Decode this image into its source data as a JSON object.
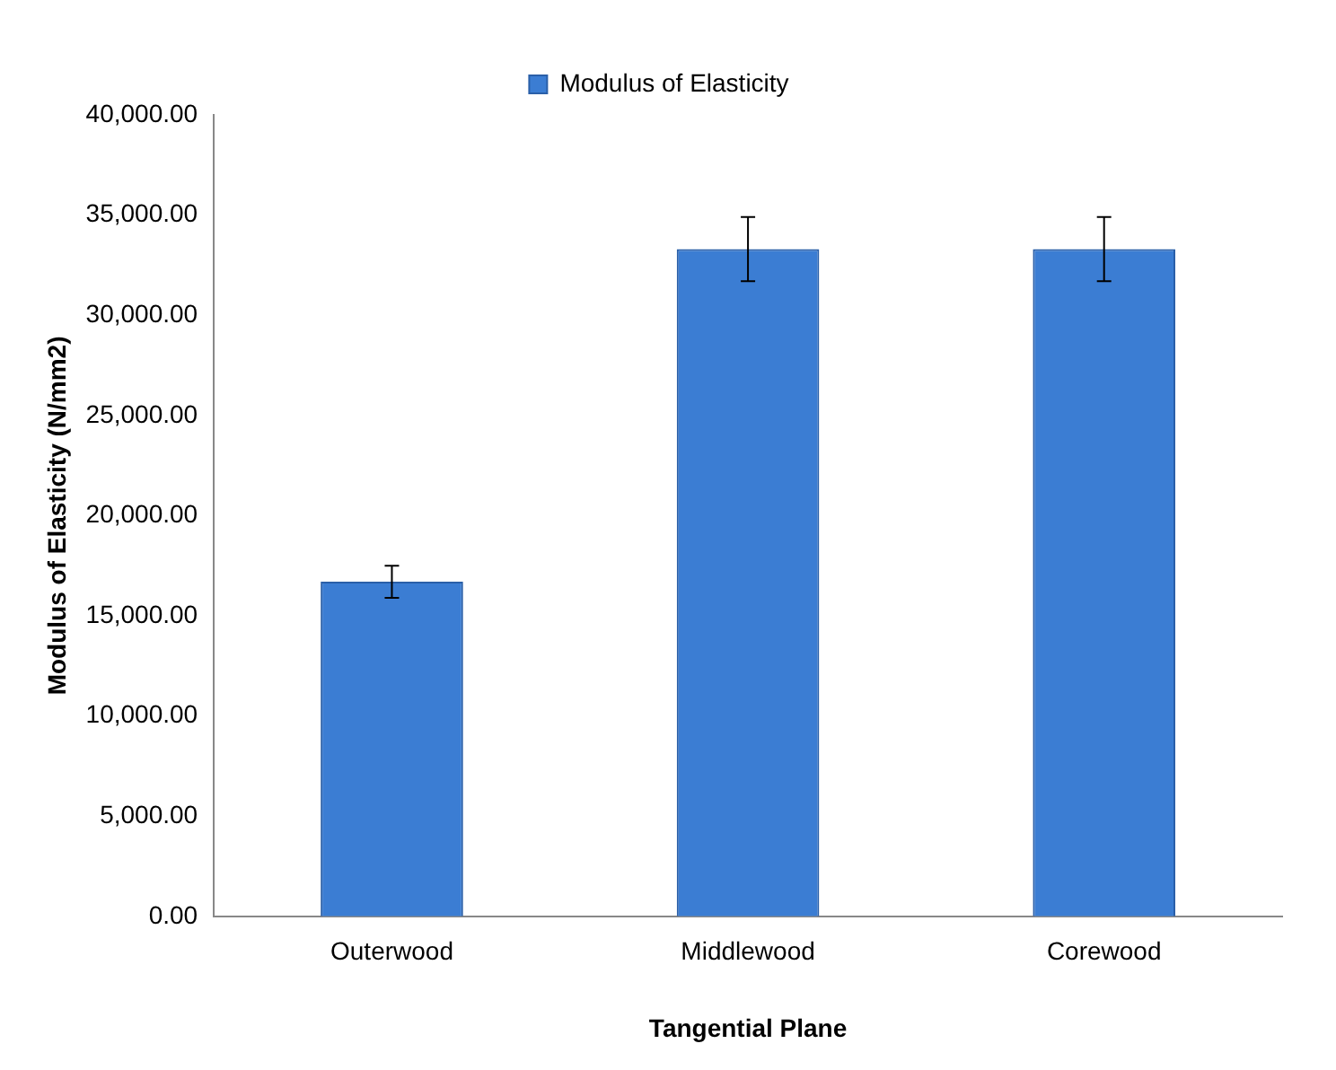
{
  "chart_data": {
    "type": "bar",
    "xlabel": "Tangential Plane",
    "ylabel": "Modulus of Elasticity (N/mm2)",
    "categories": [
      "Outerwood",
      "Middlewood",
      "Corewood"
    ],
    "series": [
      {
        "name": "Modulus of Elasticity",
        "color": "#3b7dd3",
        "values": [
          16700,
          33300,
          33300
        ],
        "errors": [
          800,
          1600,
          1600
        ]
      }
    ],
    "ylim": [
      0,
      40000
    ],
    "yticks": [
      {
        "value": 0,
        "label": "0.00"
      },
      {
        "value": 5000,
        "label": "5,000.00"
      },
      {
        "value": 10000,
        "label": "10,000.00"
      },
      {
        "value": 15000,
        "label": "15,000.00"
      },
      {
        "value": 20000,
        "label": "20,000.00"
      },
      {
        "value": 25000,
        "label": "25,000.00"
      },
      {
        "value": 30000,
        "label": "30,000.00"
      },
      {
        "value": 35000,
        "label": "35,000.00"
      },
      {
        "value": 40000,
        "label": "40,000.00"
      }
    ],
    "grid": false,
    "legend": "top"
  }
}
